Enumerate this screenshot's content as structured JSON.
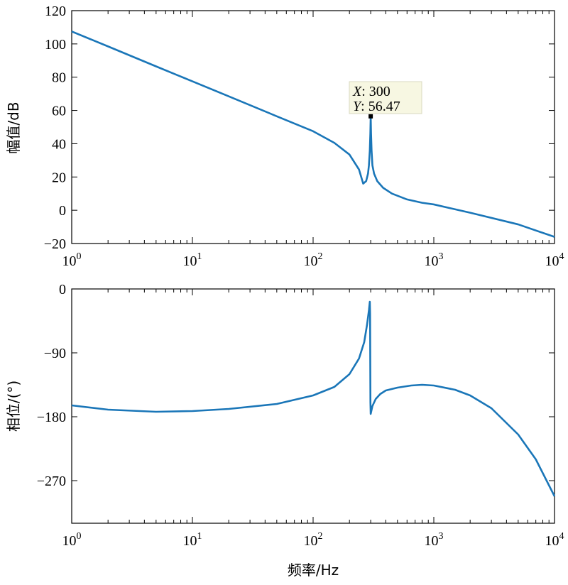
{
  "chart_data": [
    {
      "type": "line",
      "xscale": "log",
      "xlim": [
        1,
        10000
      ],
      "ylim": [
        -20,
        120
      ],
      "yticks": [
        -20,
        0,
        20,
        40,
        60,
        80,
        100,
        120
      ],
      "xticks": [
        {
          "base": "10",
          "exp": "0"
        },
        {
          "base": "10",
          "exp": "1"
        },
        {
          "base": "10",
          "exp": "2"
        },
        {
          "base": "10",
          "exp": "3"
        },
        {
          "base": "10",
          "exp": "4"
        }
      ],
      "ylabel": "幅值/dB",
      "color": "#1a76b8",
      "series": [
        {
          "x": [
            1,
            2,
            5,
            10,
            20,
            50,
            100,
            150,
            200,
            240,
            260,
            275,
            285,
            290,
            295,
            298,
            300,
            302,
            305,
            310,
            320,
            340,
            380,
            450,
            600,
            800,
            1000,
            2000,
            5000,
            10000
          ],
          "y": [
            107.5,
            98.5,
            86.5,
            77.5,
            68.5,
            56.5,
            47.5,
            40.5,
            33.5,
            24.5,
            16.0,
            17.5,
            22.0,
            27.0,
            36.0,
            46.0,
            56.47,
            46.0,
            36.0,
            27.0,
            22.0,
            17.5,
            13.5,
            10.0,
            6.5,
            4.5,
            3.5,
            -1.5,
            -8.5,
            -16.0
          ]
        }
      ],
      "datatip": {
        "x_label": "X",
        "x_value": "300",
        "y_label": "Y",
        "y_value": "56.47",
        "x": 300,
        "y": 56.47
      }
    },
    {
      "type": "line",
      "xscale": "log",
      "xlim": [
        1,
        10000
      ],
      "ylim": [
        -330,
        0
      ],
      "yticks": [
        0,
        -90,
        -180,
        -270
      ],
      "xticks": [
        {
          "base": "10",
          "exp": "0"
        },
        {
          "base": "10",
          "exp": "1"
        },
        {
          "base": "10",
          "exp": "2"
        },
        {
          "base": "10",
          "exp": "3"
        },
        {
          "base": "10",
          "exp": "4"
        }
      ],
      "xlabel": "频率/Hz",
      "ylabel": "相位/(°)",
      "color": "#1a76b8",
      "series": [
        {
          "x": [
            1,
            2,
            5,
            10,
            20,
            50,
            100,
            150,
            200,
            240,
            265,
            280,
            290,
            295,
            296.5,
            297.5,
            298.5,
            300,
            310,
            330,
            360,
            400,
            500,
            650,
            800,
            1000,
            1500,
            2000,
            3000,
            5000,
            7000,
            10000
          ],
          "y": [
            -164,
            -170,
            -173,
            -172,
            -169,
            -162,
            -150,
            -138,
            -120,
            -98,
            -75,
            -50,
            -30,
            -18,
            -35,
            -100,
            -160,
            -176,
            -165,
            -155,
            -148,
            -143,
            -139,
            -136,
            -135,
            -136,
            -142,
            -150,
            -168,
            -205,
            -240,
            -292
          ]
        }
      ]
    }
  ]
}
